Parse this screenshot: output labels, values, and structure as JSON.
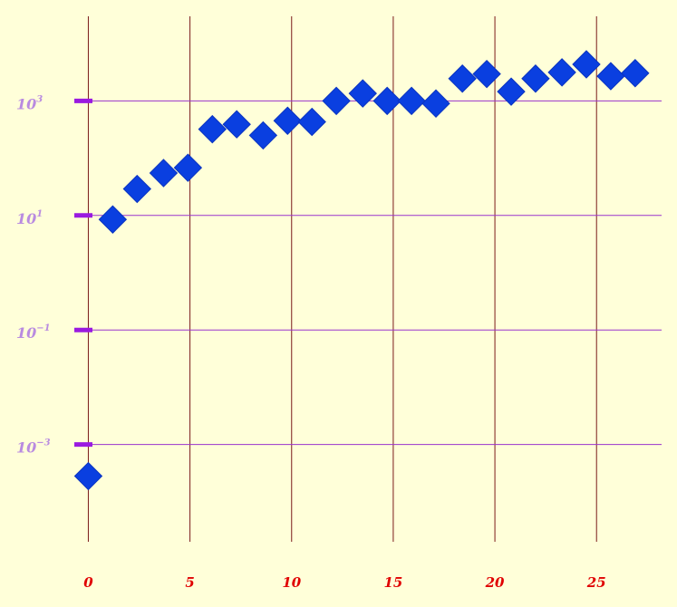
{
  "chart_data": {
    "type": "scatter",
    "title": "",
    "xlabel": "",
    "ylabel": "",
    "y_scale": "log",
    "x_ticks": [
      0,
      5,
      10,
      15,
      20,
      25
    ],
    "y_ticks": [
      {
        "base": "10",
        "exp": "−3",
        "value": 0.001
      },
      {
        "base": "10",
        "exp": "−1",
        "value": 0.1
      },
      {
        "base": "10",
        "exp": "1",
        "value": 10
      },
      {
        "base": "10",
        "exp": "3",
        "value": 1000
      }
    ],
    "xlim": [
      -0.6,
      28.2
    ],
    "ylim": [
      2e-05,
      30000
    ],
    "grid": true,
    "marker": "diamond",
    "colors": {
      "background": "#ffffd9",
      "marker": "#0a3fe0",
      "vertical_grid": "#7a1a1a",
      "horizontal_grid": "#9a33cc",
      "y_tick_mark": "#9a1ae0",
      "x_tick_label": "#e00000",
      "y_tick_label": "#b98be0"
    },
    "points": [
      {
        "x": 0,
        "y": 0.00028
      },
      {
        "x": 1.2,
        "y": 8.5
      },
      {
        "x": 2.4,
        "y": 29
      },
      {
        "x": 3.7,
        "y": 55
      },
      {
        "x": 4.9,
        "y": 68
      },
      {
        "x": 6.1,
        "y": 320
      },
      {
        "x": 7.3,
        "y": 390
      },
      {
        "x": 8.6,
        "y": 250
      },
      {
        "x": 9.8,
        "y": 450
      },
      {
        "x": 11.0,
        "y": 430
      },
      {
        "x": 12.2,
        "y": 1000
      },
      {
        "x": 13.5,
        "y": 1350
      },
      {
        "x": 14.7,
        "y": 1000
      },
      {
        "x": 15.9,
        "y": 1000
      },
      {
        "x": 17.1,
        "y": 900
      },
      {
        "x": 18.4,
        "y": 2450
      },
      {
        "x": 19.6,
        "y": 2950
      },
      {
        "x": 20.8,
        "y": 1450
      },
      {
        "x": 22.0,
        "y": 2450
      },
      {
        "x": 23.3,
        "y": 3150
      },
      {
        "x": 24.5,
        "y": 4350
      },
      {
        "x": 25.7,
        "y": 2700
      },
      {
        "x": 26.9,
        "y": 3050
      }
    ]
  }
}
